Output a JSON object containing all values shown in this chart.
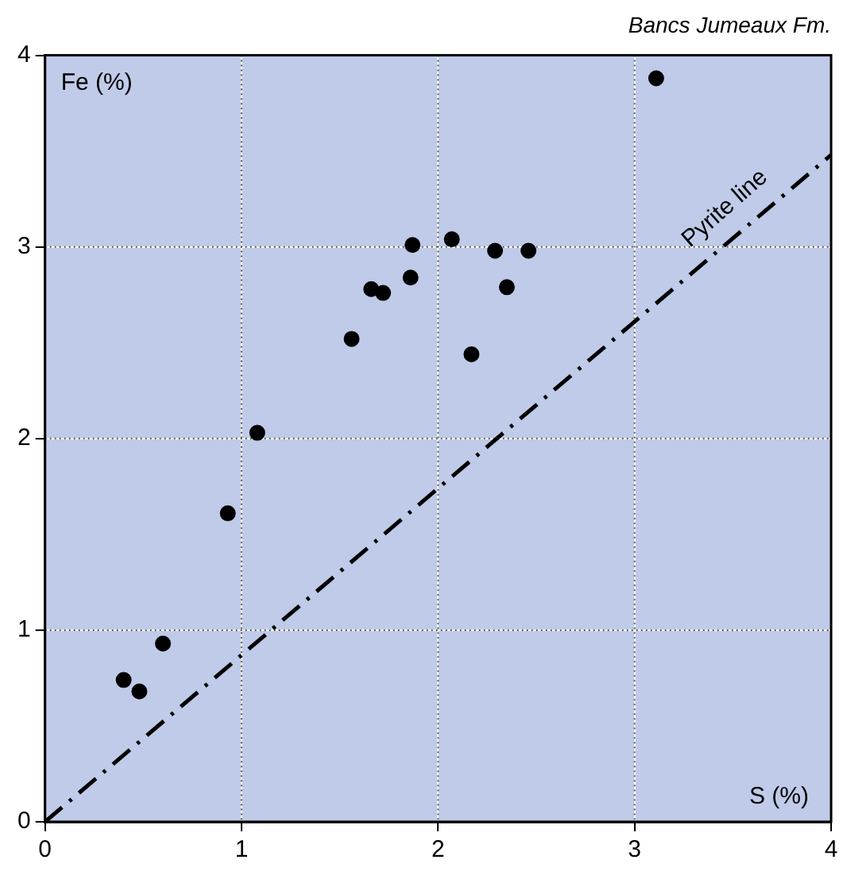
{
  "chart_data": {
    "type": "scatter",
    "title": "Bancs Jumeaux Fm.",
    "xlabel": "S (%)",
    "ylabel": "Fe (%)",
    "x": [
      0.4,
      0.48,
      0.6,
      0.93,
      1.08,
      1.56,
      1.66,
      1.72,
      1.86,
      1.87,
      2.07,
      2.17,
      2.29,
      2.35,
      2.46,
      3.11
    ],
    "series": [
      {
        "color": "#000000",
        "values": [
          0.74,
          0.68,
          0.93,
          1.61,
          2.03,
          2.52,
          2.78,
          2.76,
          2.84,
          3.01,
          3.04,
          2.44,
          2.98,
          2.79,
          2.98,
          3.88
        ]
      },
      {
        "type": "line",
        "color": "#000000",
        "x": [
          0,
          4
        ],
        "values": [
          0,
          3.48
        ],
        "line_style": "dashed",
        "marker": "none"
      }
    ],
    "annotations": [
      "Pyrite line"
    ],
    "xlim": [
      0,
      4
    ],
    "ylim": [
      0,
      4
    ],
    "xticks": [
      0,
      1,
      2,
      3,
      4
    ],
    "yticks": [
      0,
      1,
      2,
      3,
      4
    ],
    "grid": true,
    "legend": false,
    "marker": "circle"
  }
}
